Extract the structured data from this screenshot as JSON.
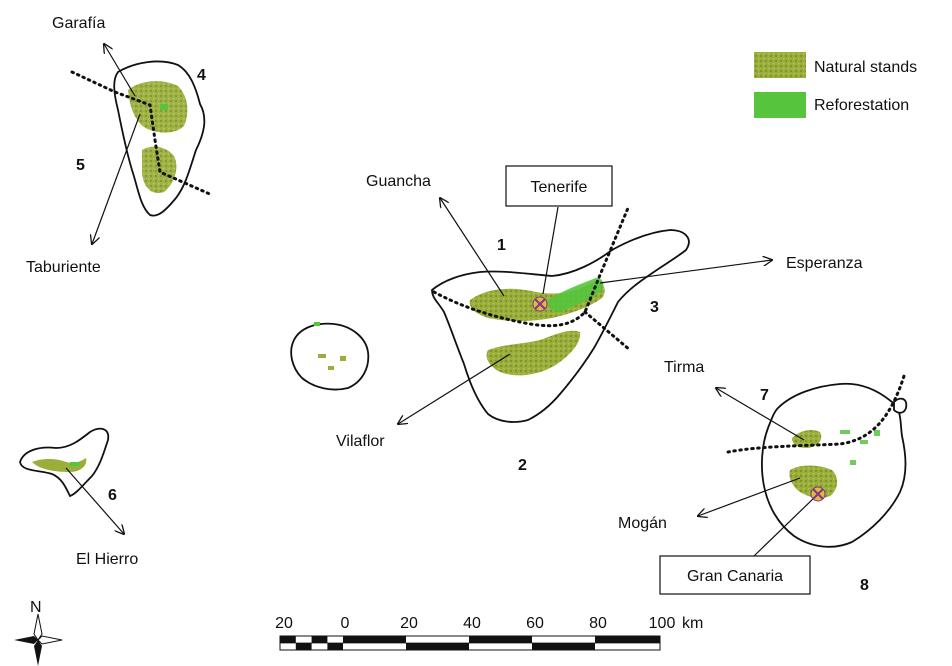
{
  "colors": {
    "natural": "#9aae3a",
    "reforestation": "#56c43c",
    "site_marker": "#7a3a8c",
    "site_marker_fill": "#e6b83a"
  },
  "legend": {
    "natural": "Natural stands",
    "reforestation": "Reforestation"
  },
  "islands": {
    "tenerife": "Tenerife",
    "gran_canaria": "Gran Canaria",
    "el_hierro": "El Hierro"
  },
  "places": {
    "garafia": "Garafía",
    "taburiente": "Taburiente",
    "guancha": "Guancha",
    "esperanza": "Esperanza",
    "vilaflor": "Vilaflor",
    "tirma": "Tirma",
    "mogan": "Mogán"
  },
  "regions": [
    "1",
    "2",
    "3",
    "4",
    "5",
    "6",
    "7",
    "8"
  ],
  "scale": {
    "ticks": [
      "20",
      "0",
      "20",
      "40",
      "60",
      "80",
      "100"
    ],
    "unit": "km"
  },
  "north": "N"
}
